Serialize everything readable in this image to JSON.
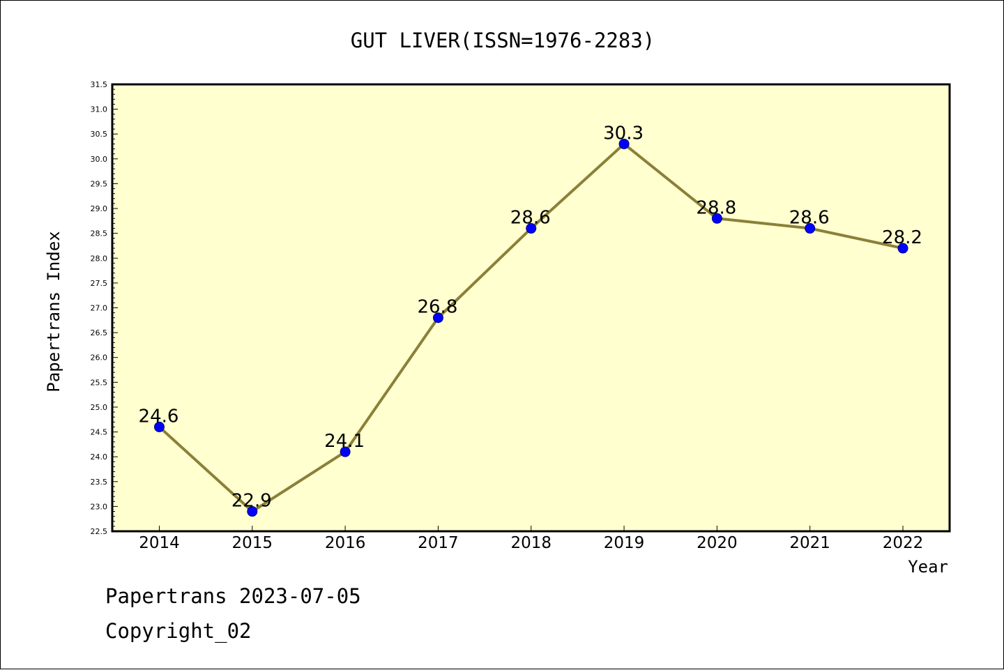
{
  "chart_data": {
    "type": "line",
    "title": "GUT LIVER(ISSN=1976-2283)",
    "xlabel": "Year",
    "ylabel": "Papertrans Index",
    "categories": [
      "2014",
      "2015",
      "2016",
      "2017",
      "2018",
      "2019",
      "2020",
      "2021",
      "2022"
    ],
    "series": [
      {
        "values": [
          24.6,
          22.9,
          24.1,
          26.8,
          28.6,
          30.3,
          28.8,
          28.6,
          28.2
        ],
        "data_labels": [
          "24.6",
          "22.9",
          "24.1",
          "26.8",
          "28.6",
          "30.3",
          "28.8",
          "28.6",
          "28.2"
        ]
      }
    ],
    "ylim": [
      22.5,
      31.5
    ],
    "yticks": [
      "22.5",
      "23.0",
      "23.5",
      "24.0",
      "24.5",
      "25.0",
      "25.5",
      "26.0",
      "26.5",
      "27.0",
      "27.5",
      "28.0",
      "28.5",
      "29.0",
      "29.5",
      "30.0",
      "30.5",
      "31.0",
      "31.5"
    ],
    "grid": false,
    "colors": {
      "plot_background": "#ffffd0",
      "line": "#8b8038",
      "marker": "#0000ff"
    }
  },
  "footer": {
    "line1": "Papertrans 2023-07-05",
    "line2": "Copyright_02"
  }
}
